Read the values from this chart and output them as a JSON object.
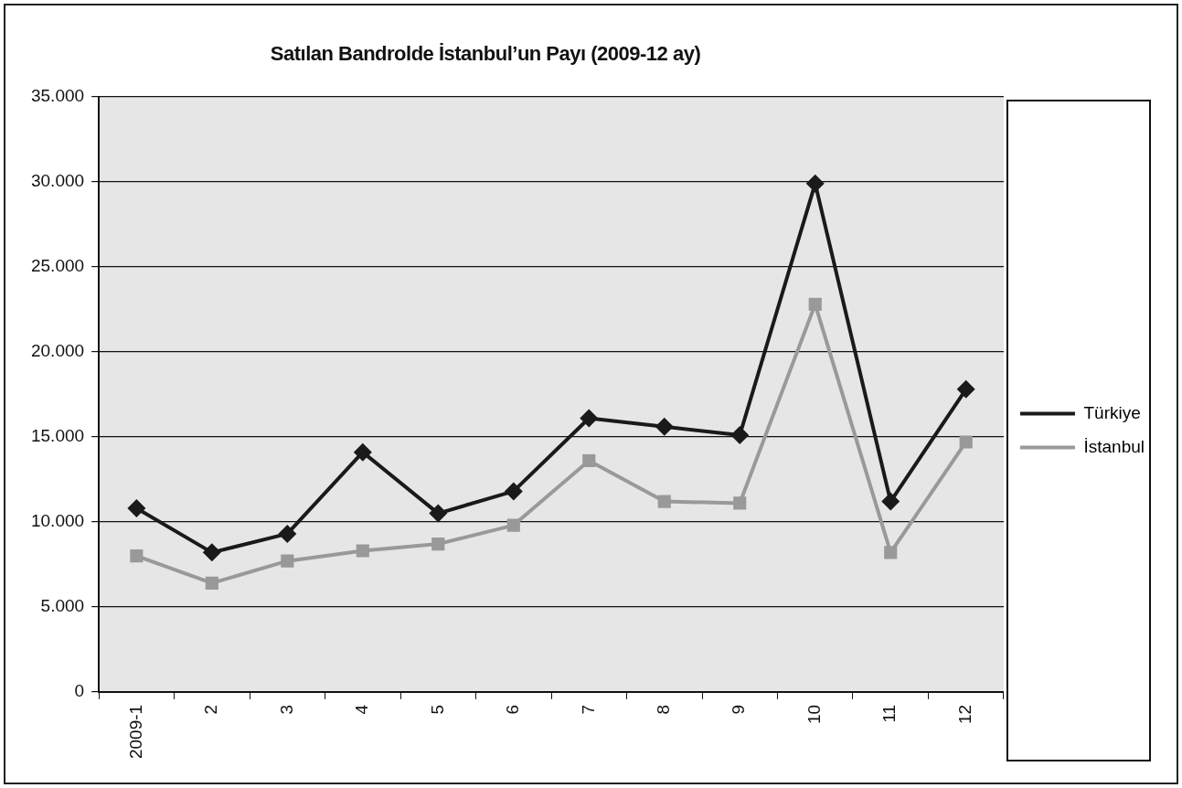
{
  "chart_data": {
    "type": "line",
    "title": "Satılan Bandrolde İstanbul’un Payı (2009-12 ay)",
    "categories": [
      "2009-1",
      "2",
      "3",
      "4",
      "5",
      "6",
      "7",
      "8",
      "9",
      "10",
      "11",
      "12"
    ],
    "series": [
      {
        "name": "Türkiye",
        "color": "#1a1a1a",
        "marker": "diamond",
        "values": [
          10800,
          8200,
          9300,
          14100,
          10500,
          11800,
          16100,
          15600,
          15100,
          29900,
          11200,
          17800
        ]
      },
      {
        "name": "İstanbul",
        "color": "#999999",
        "marker": "square",
        "values": [
          8000,
          6400,
          7700,
          8300,
          8700,
          9800,
          13600,
          11200,
          11100,
          22800,
          8200,
          14700
        ]
      }
    ],
    "ylim": [
      0,
      35000
    ],
    "yticks": [
      {
        "value": 0,
        "label": "0"
      },
      {
        "value": 5000,
        "label": "5.000"
      },
      {
        "value": 10000,
        "label": "10.000"
      },
      {
        "value": 15000,
        "label": "15.000"
      },
      {
        "value": 20000,
        "label": "20.000"
      },
      {
        "value": 25000,
        "label": "25.000"
      },
      {
        "value": 30000,
        "label": "30.000"
      },
      {
        "value": 35000,
        "label": "35.000"
      }
    ],
    "grid": "y",
    "legend": "right",
    "line_style": "solid"
  }
}
